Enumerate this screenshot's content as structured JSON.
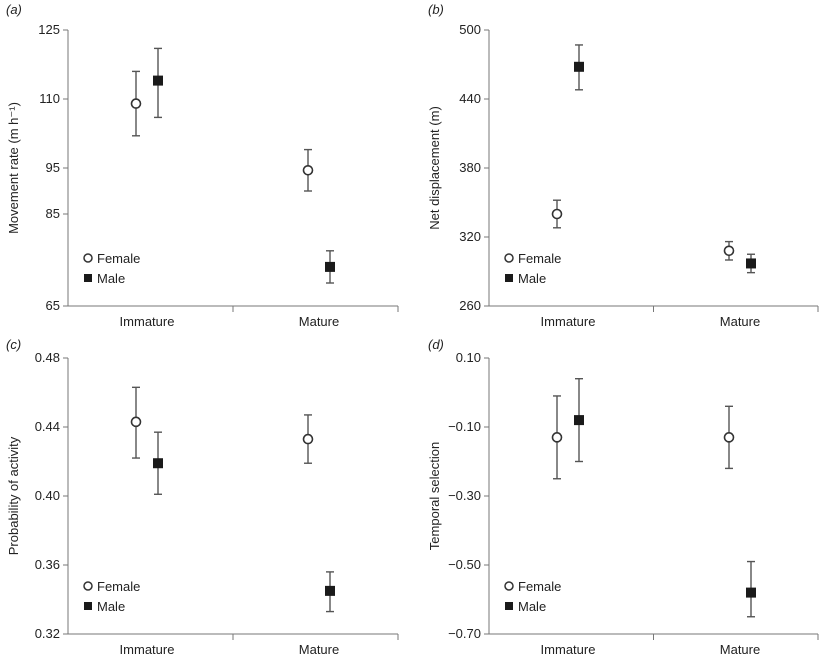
{
  "chart_data": [
    {
      "panel": "(a)",
      "type": "scatter",
      "ylabel": "Movement rate (m h⁻¹)",
      "yticks": [
        65,
        85,
        95,
        110,
        125
      ],
      "ylim": [
        65,
        125
      ],
      "categories": [
        "Immature",
        "Mature"
      ],
      "series": [
        {
          "name": "Female",
          "marker": "open-circle",
          "values": [
            109,
            94.5
          ],
          "err_low": [
            102,
            90
          ],
          "err_high": [
            116,
            99
          ]
        },
        {
          "name": "Male",
          "marker": "filled-square",
          "values": [
            114,
            73.5
          ],
          "err_low": [
            106,
            70
          ],
          "err_high": [
            121,
            77
          ]
        }
      ],
      "legend": "bottom-left"
    },
    {
      "panel": "(b)",
      "type": "scatter",
      "ylabel": "Net displacement (m)",
      "yticks": [
        260,
        320,
        380,
        440,
        500
      ],
      "ylim": [
        260,
        500
      ],
      "categories": [
        "Immature",
        "Mature"
      ],
      "series": [
        {
          "name": "Female",
          "marker": "open-circle",
          "values": [
            340,
            308
          ],
          "err_low": [
            328,
            300
          ],
          "err_high": [
            352,
            316
          ]
        },
        {
          "name": "Male",
          "marker": "filled-square",
          "values": [
            468,
            297
          ],
          "err_low": [
            448,
            289
          ],
          "err_high": [
            487,
            305
          ]
        }
      ],
      "legend": "bottom-left"
    },
    {
      "panel": "(c)",
      "type": "scatter",
      "ylabel": "Probability of activity",
      "yticks": [
        "0.32",
        "0.36",
        "0.40",
        "0.44",
        "0.48"
      ],
      "ylim": [
        0.32,
        0.48
      ],
      "categories": [
        "Immature",
        "Mature"
      ],
      "series": [
        {
          "name": "Female",
          "marker": "open-circle",
          "values": [
            0.443,
            0.433
          ],
          "err_low": [
            0.422,
            0.419
          ],
          "err_high": [
            0.463,
            0.447
          ]
        },
        {
          "name": "Male",
          "marker": "filled-square",
          "values": [
            0.419,
            0.345
          ],
          "err_low": [
            0.401,
            0.333
          ],
          "err_high": [
            0.437,
            0.356
          ]
        }
      ],
      "legend": "bottom-left"
    },
    {
      "panel": "(d)",
      "type": "scatter",
      "ylabel": "Temporal selection",
      "yticks": [
        "−0.70",
        "−0.50",
        "−0.30",
        "−0.10",
        "0.10"
      ],
      "ylim": [
        -0.7,
        0.1
      ],
      "categories": [
        "Immature",
        "Mature"
      ],
      "series": [
        {
          "name": "Female",
          "marker": "open-circle",
          "values": [
            -0.13,
            -0.13
          ],
          "err_low": [
            -0.25,
            -0.22
          ],
          "err_high": [
            -0.01,
            -0.04
          ]
        },
        {
          "name": "Male",
          "marker": "filled-square",
          "values": [
            -0.08,
            -0.58
          ],
          "err_low": [
            -0.2,
            -0.65
          ],
          "err_high": [
            0.04,
            -0.49
          ]
        }
      ],
      "legend": "bottom-left"
    }
  ]
}
